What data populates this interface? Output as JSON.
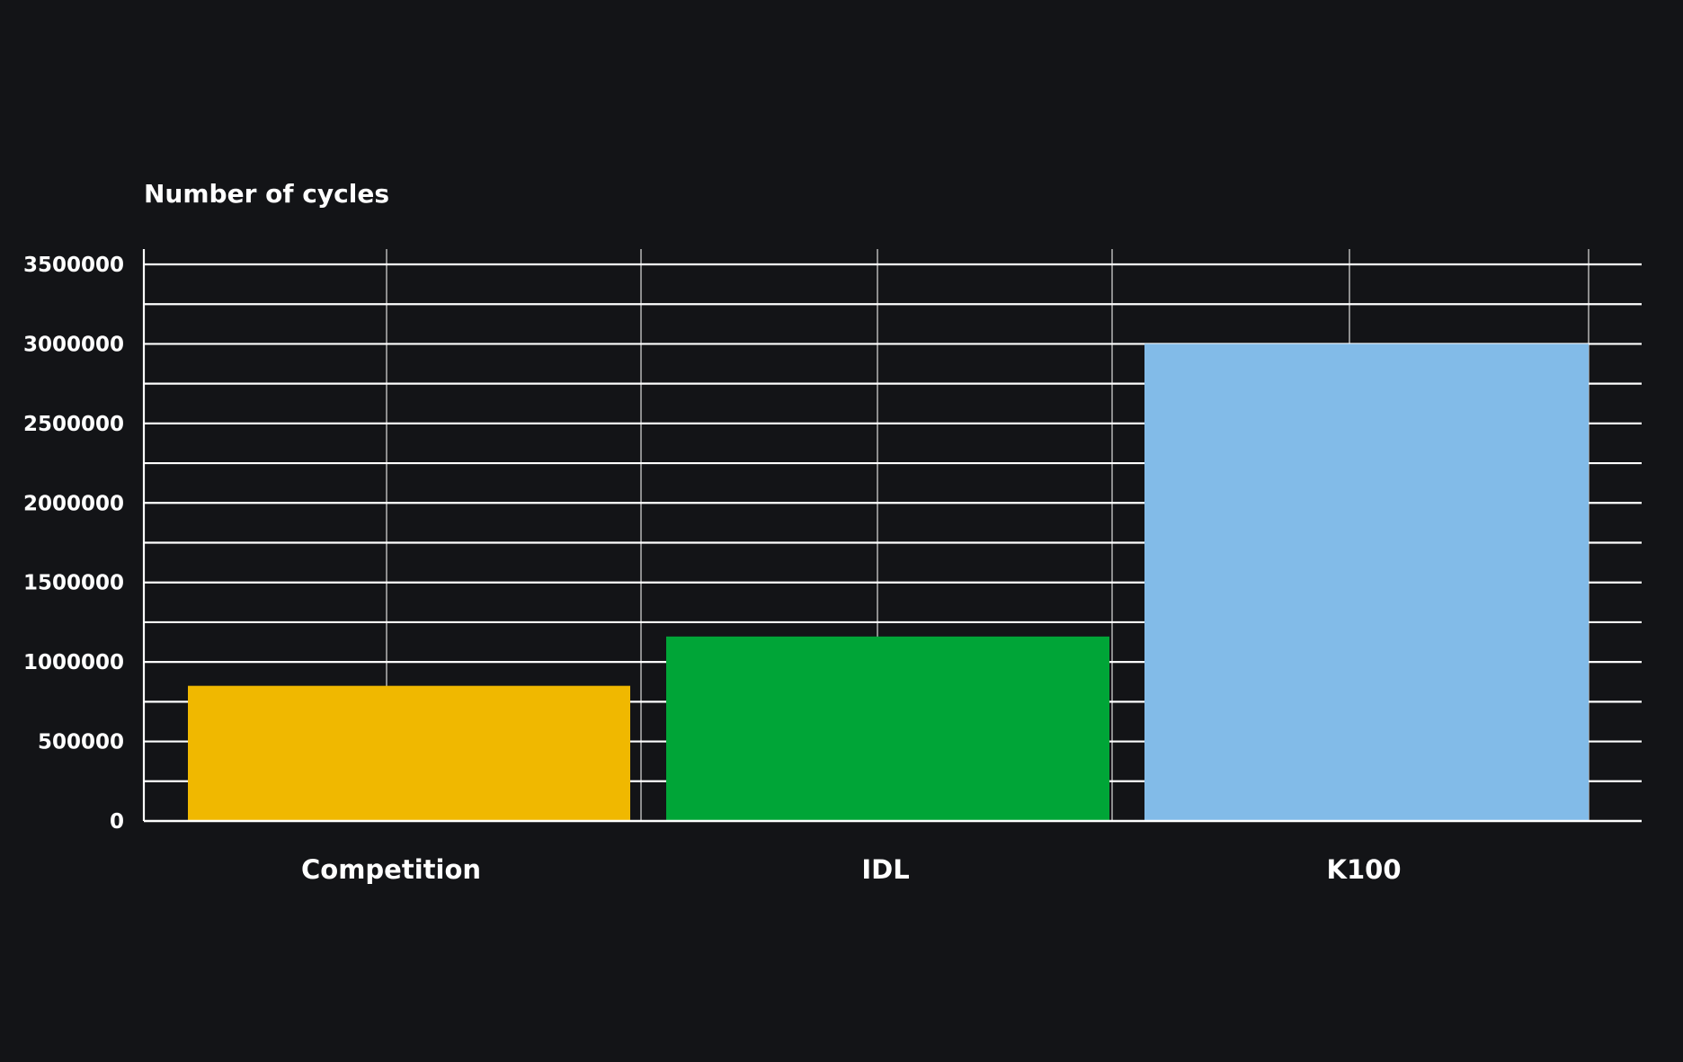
{
  "chart_data": {
    "type": "bar",
    "ylabel": "Number of cycles",
    "categories": [
      "Competition",
      "IDL",
      "K100"
    ],
    "values": [
      850000,
      1160000,
      3000000
    ],
    "colors": [
      "#F0B800",
      "#00A537",
      "#82BBE8"
    ],
    "ylim": [
      0,
      3500000
    ],
    "yticks": [
      0,
      500000,
      1000000,
      1500000,
      2000000,
      2500000,
      3000000,
      3500000
    ],
    "ytick_labels": [
      "0",
      "500000",
      "1000000",
      "1500000",
      "2000000",
      "2500000",
      "3000000",
      "3500000"
    ],
    "grid": true,
    "background": "#131417",
    "grid_color": "#ffffff"
  }
}
